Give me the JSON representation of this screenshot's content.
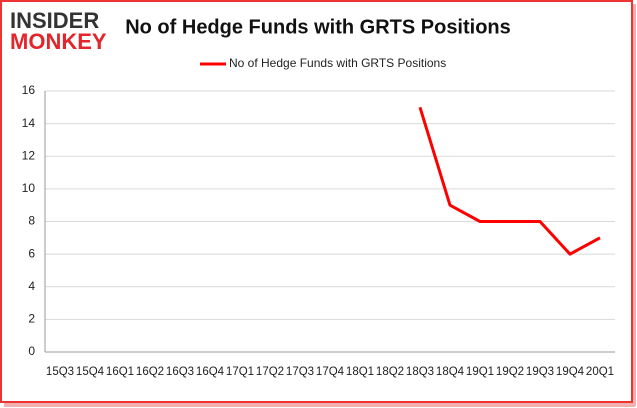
{
  "logo": {
    "top": "INSIDER",
    "bottom": "MONKEY"
  },
  "chart_data": {
    "type": "line",
    "title": "No of Hedge Funds with GRTS Positions",
    "categories": [
      "15Q3",
      "15Q4",
      "16Q1",
      "16Q2",
      "16Q3",
      "16Q4",
      "17Q1",
      "17Q2",
      "17Q3",
      "17Q4",
      "18Q1",
      "18Q2",
      "18Q3",
      "18Q4",
      "19Q1",
      "19Q2",
      "19Q3",
      "19Q4",
      "20Q1"
    ],
    "series": [
      {
        "name": "No of Hedge Funds with GRTS Positions",
        "color": "#ff0000",
        "values": [
          null,
          null,
          null,
          null,
          null,
          null,
          null,
          null,
          null,
          null,
          null,
          null,
          15,
          9,
          8,
          8,
          8,
          6,
          7
        ]
      }
    ],
    "ylim": [
      0,
      16
    ],
    "yticks": [
      0,
      2,
      4,
      6,
      8,
      10,
      12,
      14,
      16
    ],
    "grid": true,
    "legend": "top"
  }
}
